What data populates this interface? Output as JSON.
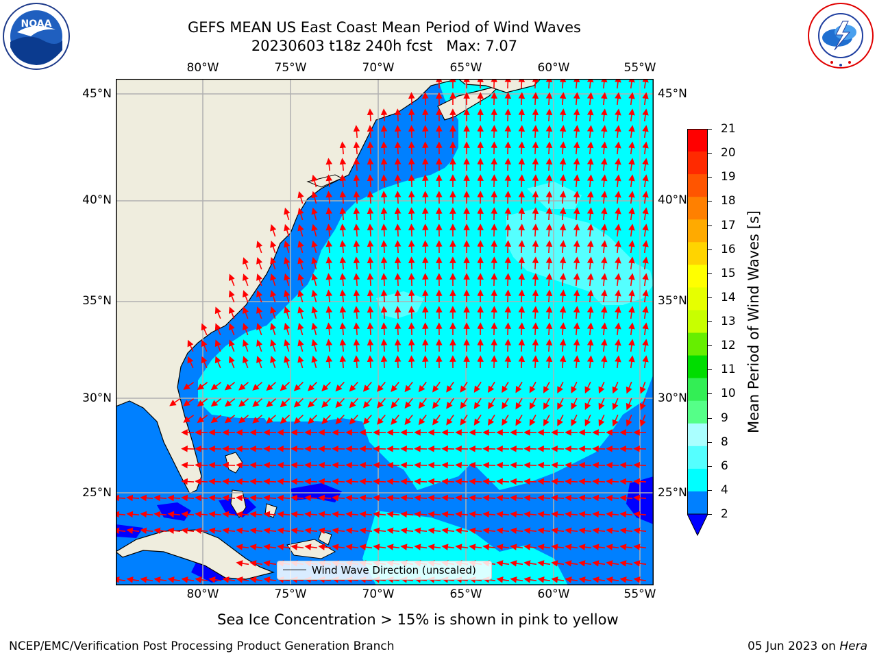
{
  "header": {
    "title_line1": "GEFS MEAN US East Coast Mean Period of Wind Waves",
    "title_line2": "20230603 t18z 240h fcst   Max: 7.07"
  },
  "logos": {
    "left": {
      "name": "noaa-logo",
      "text": "NOAA",
      "ring_text": "NATIONAL OCEANIC AND ATMOSPHERIC ADMINISTRATION · U.S. DEPARTMENT OF COMMERCE"
    },
    "right": {
      "name": "nws-logo",
      "ring_text": "NATIONAL WEATHER SERVICE"
    }
  },
  "map": {
    "lon_labels": [
      "80°W",
      "75°W",
      "70°W",
      "65°W",
      "60°W",
      "55°W"
    ],
    "lat_labels": [
      "45°N",
      "40°N",
      "35°N",
      "30°N",
      "25°N"
    ],
    "legend_label": "Wind Wave Direction (unscaled)",
    "colors": {
      "land": "#efedde",
      "coast": "#000000",
      "grid": "#b0b0b0",
      "arrow": "#ff0000"
    }
  },
  "colorbar": {
    "title": "Mean Period of Wind Waves [s]",
    "ticks": [
      "21",
      "20",
      "19",
      "18",
      "17",
      "16",
      "15",
      "14",
      "13",
      "12",
      "11",
      "10",
      "9",
      "8",
      "6",
      "4",
      "2"
    ],
    "bins": [
      {
        "range": "20-21",
        "color": "#ff0000"
      },
      {
        "range": "19-20",
        "color": "#ff2a00"
      },
      {
        "range": "18-19",
        "color": "#ff5500"
      },
      {
        "range": "17-18",
        "color": "#ff8000"
      },
      {
        "range": "16-17",
        "color": "#ffaa00"
      },
      {
        "range": "15-16",
        "color": "#ffd400"
      },
      {
        "range": "14-15",
        "color": "#ffff00"
      },
      {
        "range": "13-14",
        "color": "#e6ff00"
      },
      {
        "range": "12-13",
        "color": "#c8ff00"
      },
      {
        "range": "11-12",
        "color": "#66ee00"
      },
      {
        "range": "10-11",
        "color": "#00dd00"
      },
      {
        "range": "9-10",
        "color": "#33ee55"
      },
      {
        "range": "8-9",
        "color": "#55ff88"
      },
      {
        "range": "6-8",
        "color": "#aaffff"
      },
      {
        "range": "4-6",
        "color": "#55ffff"
      },
      {
        "range": "2-4",
        "color": "#00ffff"
      },
      {
        "range": "<2",
        "color": "#0080ff"
      },
      {
        "range": "under",
        "color": "#0000ff"
      }
    ]
  },
  "notes": {
    "sea_ice": "Sea Ice Concentration > 15% is shown in pink to yellow",
    "footer_left": "NCEP/EMC/Verification Post Processing Product Generation Branch",
    "footer_right_prefix": "05 Jun 2023 on ",
    "footer_right_host": "Hera"
  }
}
